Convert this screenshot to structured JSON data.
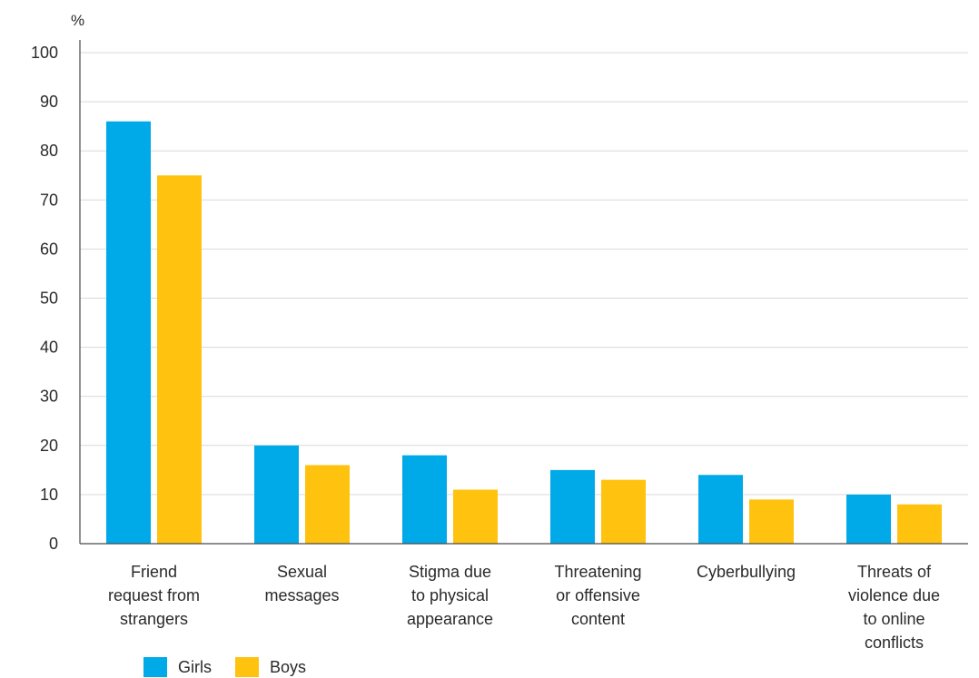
{
  "chart_data": {
    "type": "bar",
    "unit_label": "%",
    "categories": [
      [
        "Friend",
        "request from",
        "strangers"
      ],
      [
        "Sexual",
        "messages"
      ],
      [
        "Stigma due",
        "to physical",
        "appearance"
      ],
      [
        "Threatening",
        "or offensive",
        "content"
      ],
      [
        "Cyberbullying"
      ],
      [
        "Threats of",
        "violence due",
        "to online",
        "conflicts"
      ]
    ],
    "series": [
      {
        "name": "Girls",
        "color": "#00a9e7",
        "values": [
          86,
          20,
          18,
          15,
          14,
          10
        ]
      },
      {
        "name": "Boys",
        "color": "#ffc20e",
        "values": [
          75,
          16,
          11,
          13,
          9,
          8
        ]
      }
    ],
    "ylim": [
      0,
      100
    ],
    "yticks": [
      0,
      10,
      20,
      30,
      40,
      50,
      60,
      70,
      80,
      90,
      100
    ],
    "grid": true,
    "legend_position": "bottom-left"
  }
}
